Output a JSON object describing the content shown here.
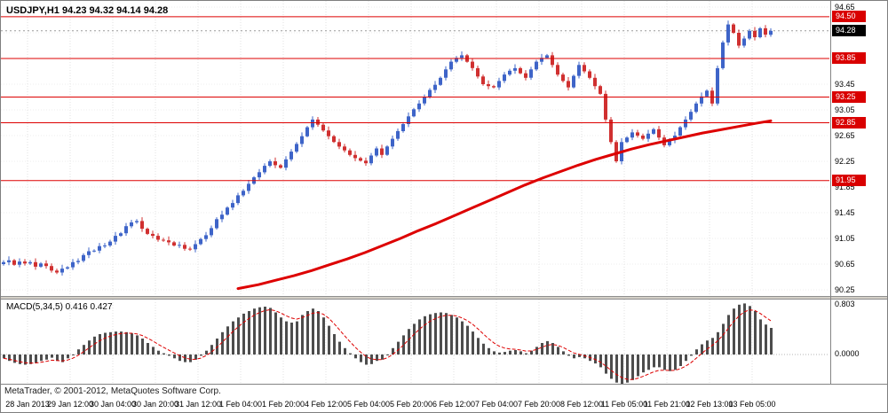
{
  "window": {
    "symbol_ohlc_label": "USDJPY,H1 94.23 94.32 94.14 94.28",
    "copyright": "MetaTrader, © 2001-2012, MetaQuotes Software Corp."
  },
  "colors": {
    "bull": "#3e64c8",
    "bear": "#d03030",
    "line_red": "#dd0000",
    "macd_bar": "#4d4d4d",
    "grid_v": "#e2e2e2",
    "grid_h": "#ececec",
    "level_box_bg": "#d90000",
    "current_box_bg": "#000000"
  },
  "price_axis": {
    "ticks": [
      "94.65",
      "94.25",
      "93.85",
      "93.45",
      "93.05",
      "92.65",
      "92.25",
      "91.85",
      "91.45",
      "91.05",
      "90.65",
      "90.25"
    ],
    "tick_values": [
      94.65,
      94.25,
      93.85,
      93.45,
      93.05,
      92.65,
      92.25,
      91.85,
      91.45,
      91.05,
      90.65,
      90.25
    ],
    "level_lines": [
      94.5,
      93.85,
      93.25,
      92.85,
      91.95
    ],
    "level_labels": [
      "94.50",
      "93.85",
      "93.25",
      "92.85",
      "91.95"
    ],
    "current_price": 94.28,
    "current_price_label": "94.28"
  },
  "macd_axis": {
    "top_label": "0.803",
    "zero_label": "0.0000"
  },
  "time_axis": {
    "labels": [
      "28 Jan 2013",
      "29 Jan 12:00",
      "30 Jan 04:00",
      "30 Jan 20:00",
      "31 Jan 12:00",
      "1 Feb 04:00",
      "1 Feb 20:00",
      "4 Feb 12:00",
      "5 Feb 04:00",
      "5 Feb 20:00",
      "6 Feb 12:00",
      "7 Feb 04:00",
      "7 Feb 20:00",
      "8 Feb 12:00",
      "11 Feb 05:00",
      "11 Feb 21:00",
      "12 Feb 13:00",
      "13 Feb 05:00"
    ]
  },
  "chart_data": {
    "type": "candlestick",
    "title": "USDJPY,H1",
    "ylabel": "price",
    "price_range": [
      90.25,
      94.65
    ],
    "last_bar": {
      "open": 94.23,
      "high": 94.32,
      "low": 94.14,
      "close": 94.28
    },
    "first_open": 90.65,
    "closes": [
      90.68,
      90.71,
      90.64,
      90.69,
      90.66,
      90.68,
      90.61,
      90.66,
      90.62,
      90.55,
      90.52,
      90.58,
      90.6,
      90.68,
      90.7,
      90.79,
      90.85,
      90.86,
      90.93,
      90.94,
      91.0,
      91.09,
      91.13,
      91.24,
      91.3,
      91.32,
      91.2,
      91.12,
      91.09,
      91.03,
      91.02,
      90.99,
      90.94,
      90.95,
      90.89,
      90.88,
      90.96,
      91.04,
      91.1,
      91.21,
      91.35,
      91.42,
      91.53,
      91.6,
      91.72,
      91.79,
      91.9,
      92.0,
      92.08,
      92.18,
      92.25,
      92.19,
      92.15,
      92.28,
      92.4,
      92.52,
      92.64,
      92.78,
      92.9,
      92.82,
      92.73,
      92.64,
      92.55,
      92.48,
      92.42,
      92.35,
      92.3,
      92.26,
      92.22,
      92.34,
      92.45,
      92.35,
      92.48,
      92.6,
      92.72,
      92.83,
      92.95,
      93.06,
      93.15,
      93.25,
      93.36,
      93.44,
      93.55,
      93.68,
      93.8,
      93.86,
      93.9,
      93.8,
      93.7,
      93.57,
      93.45,
      93.42,
      93.4,
      93.5,
      93.6,
      93.66,
      93.7,
      93.62,
      93.55,
      93.68,
      93.8,
      93.86,
      93.9,
      93.75,
      93.6,
      93.5,
      93.4,
      93.58,
      93.75,
      93.65,
      93.55,
      93.42,
      93.3,
      92.9,
      92.55,
      92.25,
      92.55,
      92.62,
      92.7,
      92.65,
      92.6,
      92.68,
      92.75,
      92.62,
      92.5,
      92.58,
      92.65,
      92.78,
      92.9,
      93.02,
      93.15,
      93.26,
      93.35,
      93.15,
      93.7,
      94.1,
      94.38,
      94.25,
      94.05,
      94.16,
      94.28,
      94.18,
      94.32,
      94.22,
      94.28
    ],
    "ma_red": [
      [
        267,
        90.27
      ],
      [
        290,
        90.33
      ],
      [
        310,
        90.4
      ],
      [
        330,
        90.47
      ],
      [
        350,
        90.55
      ],
      [
        370,
        90.64
      ],
      [
        390,
        90.73
      ],
      [
        410,
        90.83
      ],
      [
        430,
        90.94
      ],
      [
        450,
        91.05
      ],
      [
        470,
        91.17
      ],
      [
        490,
        91.28
      ],
      [
        510,
        91.4
      ],
      [
        530,
        91.52
      ],
      [
        550,
        91.64
      ],
      [
        570,
        91.76
      ],
      [
        590,
        91.88
      ],
      [
        610,
        91.99
      ],
      [
        630,
        92.09
      ],
      [
        650,
        92.19
      ],
      [
        670,
        92.28
      ],
      [
        690,
        92.36
      ],
      [
        710,
        92.44
      ],
      [
        730,
        92.51
      ],
      [
        750,
        92.57
      ],
      [
        770,
        92.63
      ],
      [
        790,
        92.69
      ],
      [
        810,
        92.74
      ],
      [
        830,
        92.79
      ],
      [
        850,
        92.84
      ],
      [
        867,
        92.88
      ]
    ],
    "indicator": {
      "type": "bar",
      "name": "MACD(5,34,5)",
      "label_full": "MACD(5,34,5) 0.416 0.427",
      "current_values": [
        0.416,
        0.427
      ],
      "range": [
        -0.46,
        0.86
      ],
      "histogram": [
        -0.06,
        -0.1,
        -0.13,
        -0.15,
        -0.16,
        -0.15,
        -0.13,
        -0.1,
        -0.08,
        -0.05,
        -0.1,
        -0.12,
        -0.06,
        0.0,
        0.08,
        0.15,
        0.22,
        0.28,
        0.32,
        0.34,
        0.35,
        0.36,
        0.36,
        0.35,
        0.33,
        0.3,
        0.25,
        0.18,
        0.12,
        0.06,
        0.02,
        -0.02,
        -0.06,
        -0.1,
        -0.12,
        -0.12,
        -0.08,
        -0.02,
        0.06,
        0.15,
        0.25,
        0.35,
        0.44,
        0.52,
        0.58,
        0.64,
        0.68,
        0.72,
        0.74,
        0.75,
        0.73,
        0.66,
        0.58,
        0.52,
        0.5,
        0.52,
        0.62,
        0.68,
        0.72,
        0.68,
        0.58,
        0.45,
        0.32,
        0.2,
        0.1,
        0.02,
        -0.06,
        -0.12,
        -0.16,
        -0.15,
        -0.1,
        -0.08,
        0.0,
        0.1,
        0.2,
        0.3,
        0.4,
        0.48,
        0.55,
        0.6,
        0.63,
        0.65,
        0.66,
        0.65,
        0.62,
        0.58,
        0.52,
        0.45,
        0.36,
        0.26,
        0.17,
        0.1,
        0.05,
        0.03,
        0.04,
        0.06,
        0.07,
        0.05,
        0.02,
        0.06,
        0.12,
        0.18,
        0.21,
        0.18,
        0.12,
        0.05,
        -0.02,
        -0.06,
        -0.04,
        -0.06,
        -0.1,
        -0.14,
        -0.2,
        -0.3,
        -0.38,
        -0.44,
        -0.46,
        -0.44,
        -0.4,
        -0.34,
        -0.28,
        -0.24,
        -0.2,
        -0.2,
        -0.24,
        -0.26,
        -0.24,
        -0.18,
        -0.1,
        -0.02,
        0.08,
        0.16,
        0.22,
        0.26,
        0.35,
        0.48,
        0.62,
        0.72,
        0.78,
        0.8,
        0.76,
        0.68,
        0.55,
        0.47,
        0.416
      ]
    }
  }
}
